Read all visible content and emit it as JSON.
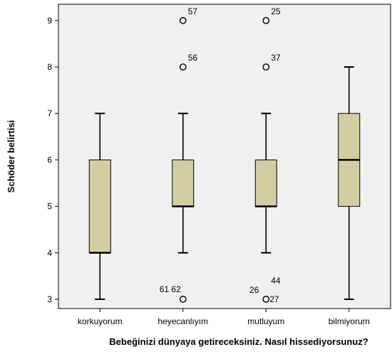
{
  "chart_data": {
    "type": "boxplot",
    "xlabel": "Bebeğinizi dünyaya getireceksiniz. Nasıl hissediyorsunuz?",
    "ylabel": "Schöder belirtisi",
    "ylim": [
      2.8,
      9.35
    ],
    "yticks": [
      3,
      4,
      5,
      6,
      7,
      8,
      9
    ],
    "grid": false,
    "colors": {
      "box_fill": "#d3cea2",
      "plot_bg": "#f0f0f0",
      "stroke": "#000000"
    },
    "categories": [
      "korkuyorum",
      "heyecanlıyım",
      "mutluyum",
      "bilmiyorum"
    ],
    "boxes": [
      {
        "category": "korkuyorum",
        "whisker_low": 3,
        "q1": 4,
        "median": 4,
        "q3": 6,
        "whisker_high": 7,
        "outliers": []
      },
      {
        "category": "heyecanlıyım",
        "whisker_low": 4,
        "q1": 5,
        "median": 5,
        "q3": 6,
        "whisker_high": 7,
        "outliers": [
          {
            "value": 9,
            "label": "57"
          },
          {
            "value": 8,
            "label": "56"
          },
          {
            "value": 3,
            "label": "61  62"
          }
        ]
      },
      {
        "category": "mutluyum",
        "whisker_low": 4,
        "q1": 5,
        "median": 5,
        "q3": 6,
        "whisker_high": 7,
        "outliers": [
          {
            "value": 9,
            "label": "25"
          },
          {
            "value": 8,
            "label": "37"
          },
          {
            "value": 3,
            "label": "26"
          },
          {
            "value": 3,
            "label": "44"
          },
          {
            "value": 3,
            "label": "27"
          }
        ]
      },
      {
        "category": "bilmiyorum",
        "whisker_low": 3,
        "q1": 5,
        "median": 6,
        "q3": 7,
        "whisker_high": 8,
        "outliers": []
      }
    ]
  }
}
